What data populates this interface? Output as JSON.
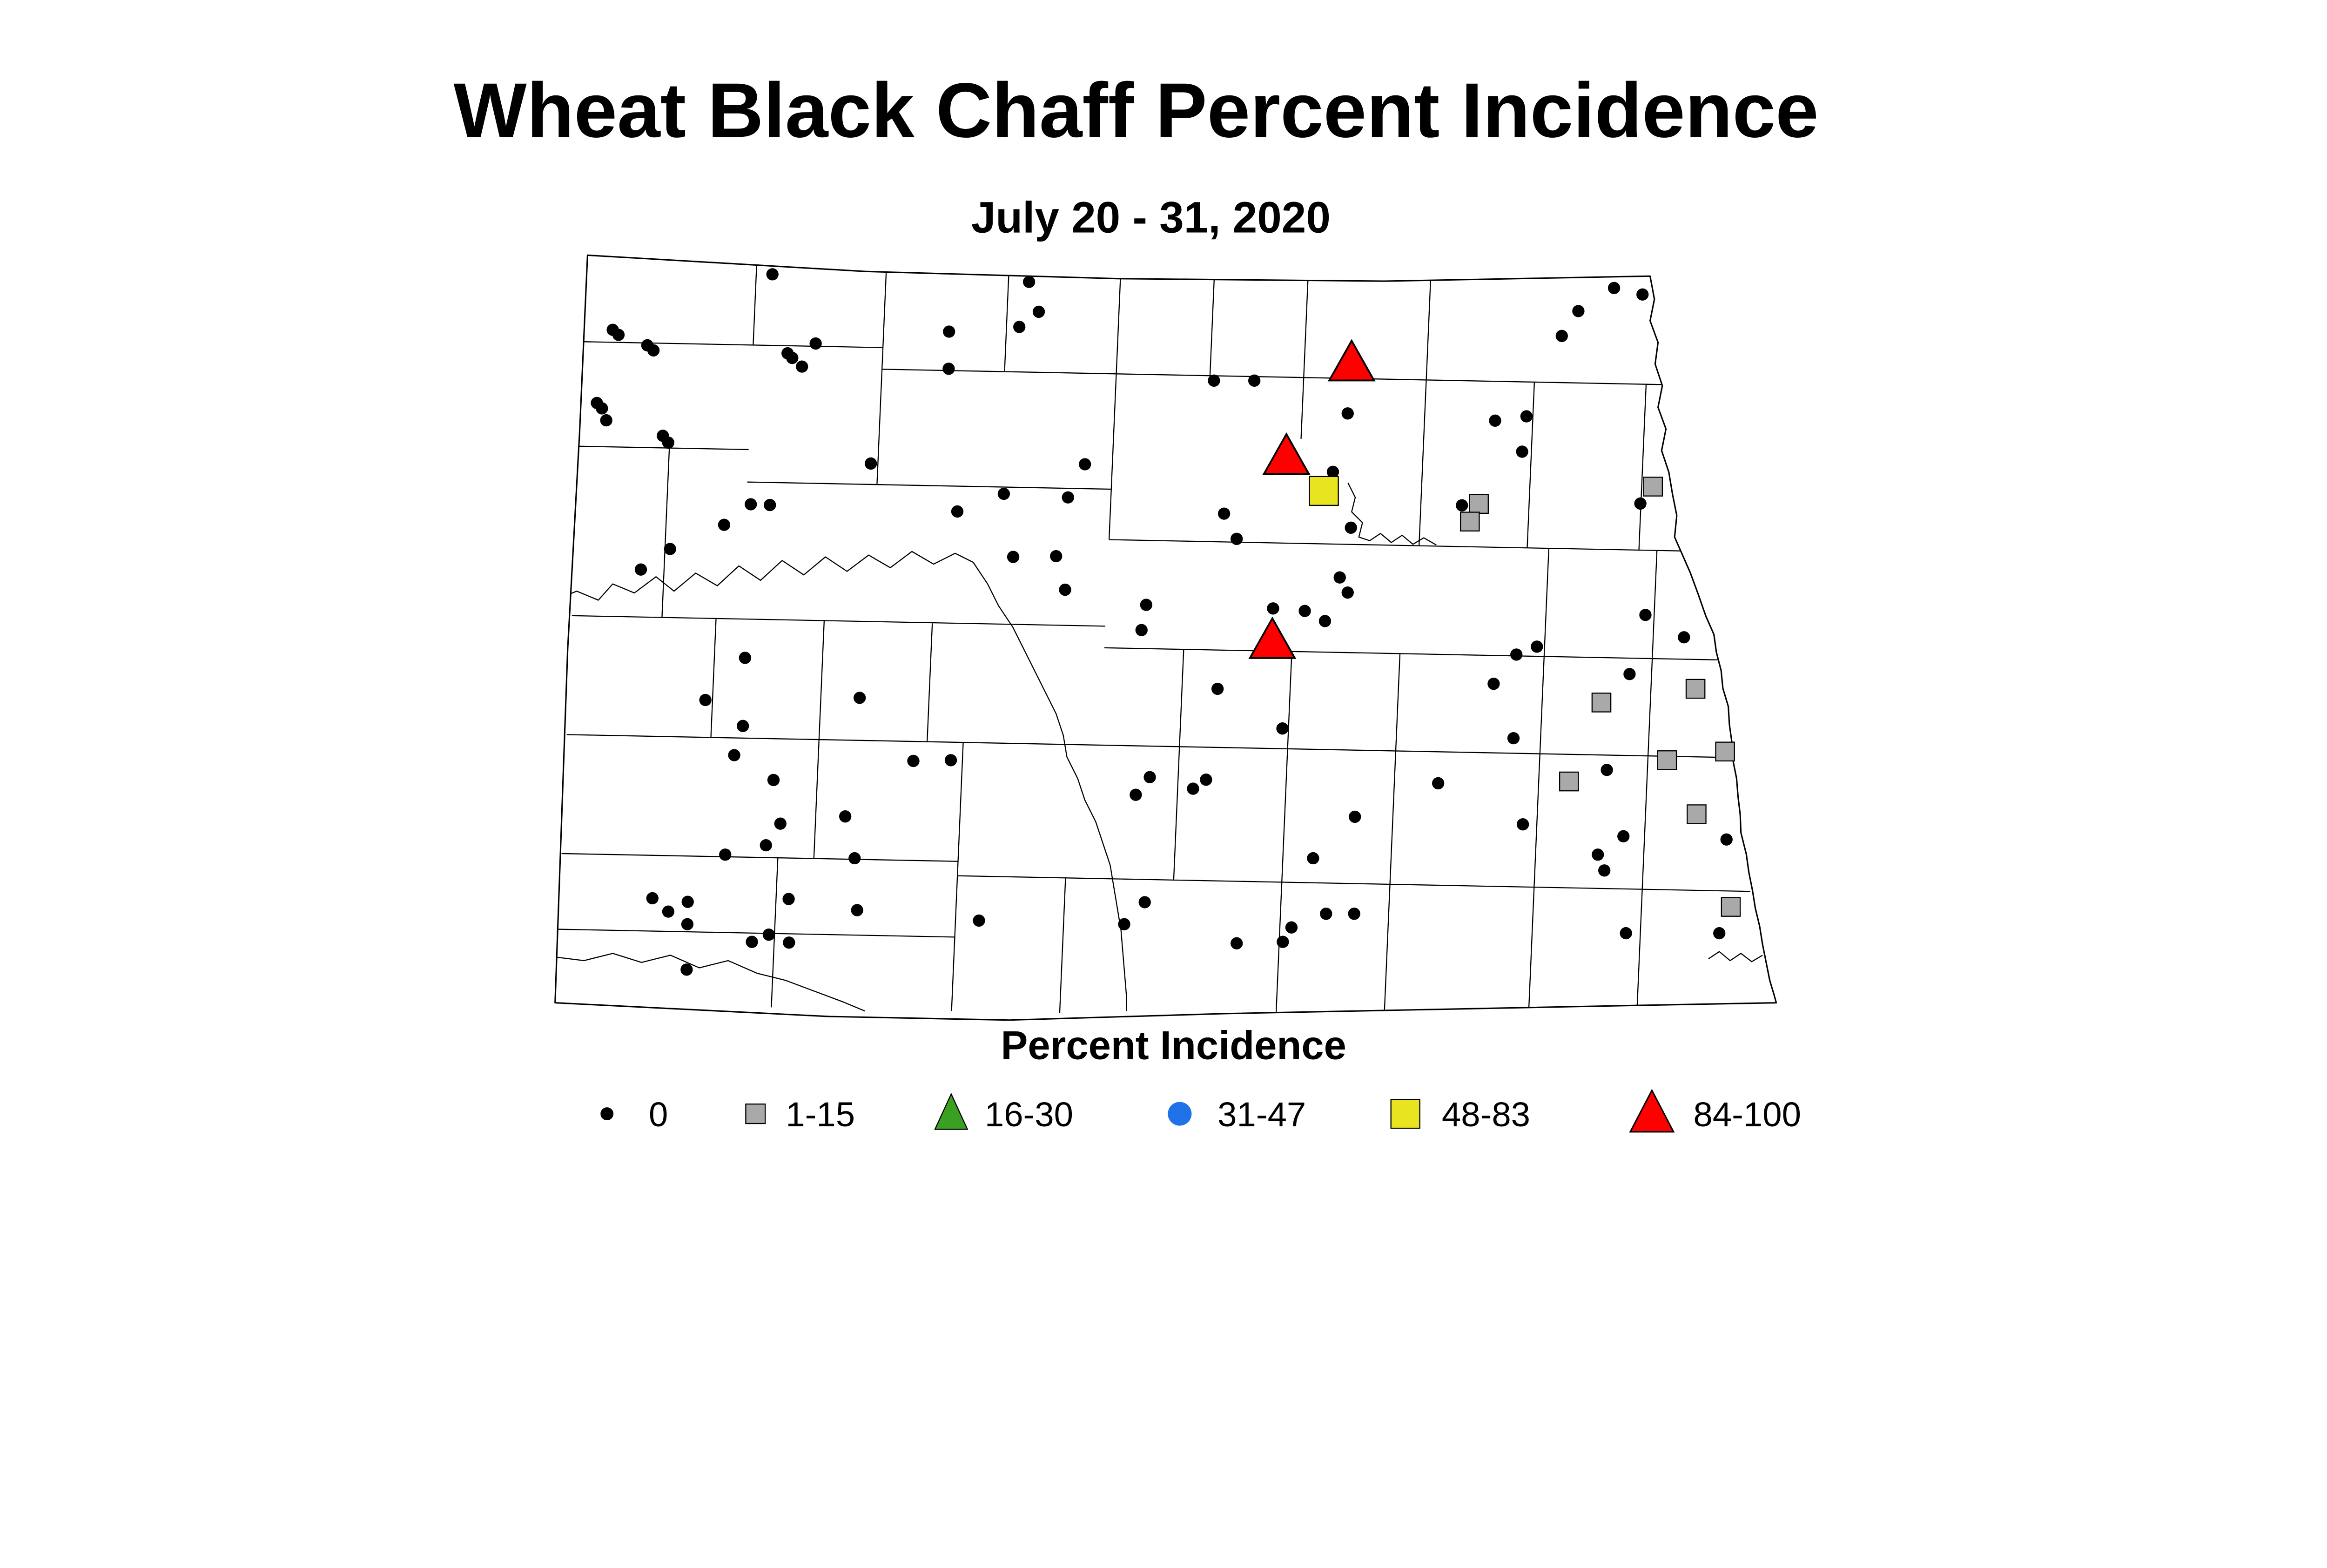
{
  "title": "Wheat Black Chaff Percent Incidence",
  "subtitle": "July 20 - 31, 2020",
  "legend": {
    "title": "Percent Incidence",
    "items": [
      {
        "label": "0",
        "shape": "dot",
        "color": "#000000"
      },
      {
        "label": "1-15",
        "shape": "square",
        "color": "#A9A9A9"
      },
      {
        "label": "16-30",
        "shape": "triangle",
        "color": "#3AA021"
      },
      {
        "label": "31-47",
        "shape": "circle",
        "color": "#2171E8"
      },
      {
        "label": "48-83",
        "shape": "square",
        "color": "#E8E41F"
      },
      {
        "label": "84-100",
        "shape": "triangle",
        "color": "#FF0000"
      }
    ]
  },
  "chart_data": {
    "type": "scatter",
    "map_region": "North Dakota counties",
    "title": "Wheat Black Chaff Percent Incidence",
    "subtitle": "July 20 - 31, 2020",
    "legend_title": "Percent Incidence",
    "classes": [
      {
        "key": "pct_0",
        "label": "0",
        "shape": "dot",
        "color": "#000000",
        "size": 17
      },
      {
        "key": "pct_1_15",
        "label": "1-15",
        "shape": "square",
        "color": "#A9A9A9",
        "size": 52
      },
      {
        "key": "pct_16_30",
        "label": "16-30",
        "shape": "triangle",
        "color": "#3AA021",
        "size": 100
      },
      {
        "key": "pct_31_47",
        "label": "31-47",
        "shape": "circle",
        "color": "#2171E8",
        "size": 33
      },
      {
        "key": "pct_48_83",
        "label": "48-83",
        "shape": "square",
        "color": "#E8E41F",
        "size": 80
      },
      {
        "key": "pct_84_100",
        "label": "84-100",
        "shape": "triangle",
        "color": "#FF0000",
        "size": 110
      }
    ],
    "points": {
      "pct_0": [
        [
          2143,
          761
        ],
        [
          1700,
          915
        ],
        [
          1716,
          929
        ],
        [
          1796,
          958
        ],
        [
          1813,
          972
        ],
        [
          2263,
          953
        ],
        [
          2185,
          980
        ],
        [
          2198,
          993
        ],
        [
          2225,
          1017
        ],
        [
          2633,
          920
        ],
        [
          2632,
          1023
        ],
        [
          1656,
          1118
        ],
        [
          1670,
          1133
        ],
        [
          1682,
          1166
        ],
        [
          1839,
          1209
        ],
        [
          1854,
          1228
        ],
        [
          2416,
          1286
        ],
        [
          2083,
          1399
        ],
        [
          2136,
          1401
        ],
        [
          2009,
          1456
        ],
        [
          1859,
          1523
        ],
        [
          1778,
          1580
        ],
        [
          2656,
          1419
        ],
        [
          2855,
          782
        ],
        [
          2882,
          865
        ],
        [
          2828,
          907
        ],
        [
          3368,
          1056
        ],
        [
          3480,
          1056
        ],
        [
          3739,
          1147
        ],
        [
          3698,
          1309
        ],
        [
          3010,
          1288
        ],
        [
          2785,
          1370
        ],
        [
          2963,
          1380
        ],
        [
          3396,
          1425
        ],
        [
          3431,
          1495
        ],
        [
          3748,
          1464
        ],
        [
          2811,
          1545
        ],
        [
          2930,
          1543
        ],
        [
          2955,
          1636
        ],
        [
          3180,
          1678
        ],
        [
          3167,
          1748
        ],
        [
          3532,
          1688
        ],
        [
          3620,
          1695
        ],
        [
          3676,
          1723
        ],
        [
          3717,
          1602
        ],
        [
          3739,
          1644
        ],
        [
          4478,
          799
        ],
        [
          4557,
          817
        ],
        [
          4379,
          863
        ],
        [
          4333,
          932
        ],
        [
          4148,
          1167
        ],
        [
          4235,
          1155
        ],
        [
          4223,
          1253
        ],
        [
          4551,
          1397
        ],
        [
          4056,
          1402
        ],
        [
          4565,
          1706
        ],
        [
          4672,
          1768
        ],
        [
          2067,
          1825
        ],
        [
          1957,
          1942
        ],
        [
          2385,
          1936
        ],
        [
          2061,
          2014
        ],
        [
          2037,
          2095
        ],
        [
          2146,
          2164
        ],
        [
          2165,
          2285
        ],
        [
          2345,
          2265
        ],
        [
          2125,
          2345
        ],
        [
          2012,
          2371
        ],
        [
          2371,
          2381
        ],
        [
          2534,
          2111
        ],
        [
          2638,
          2109
        ],
        [
          1810,
          2492
        ],
        [
          1908,
          2502
        ],
        [
          1854,
          2529
        ],
        [
          1907,
          2564
        ],
        [
          2188,
          2494
        ],
        [
          2378,
          2525
        ],
        [
          2086,
          2613
        ],
        [
          2133,
          2593
        ],
        [
          2189,
          2615
        ],
        [
          1905,
          2690
        ],
        [
          3378,
          1911
        ],
        [
          3558,
          2021
        ],
        [
          3190,
          2156
        ],
        [
          3151,
          2205
        ],
        [
          3310,
          2188
        ],
        [
          3346,
          2163
        ],
        [
          3759,
          2266
        ],
        [
          3643,
          2381
        ],
        [
          2716,
          2554
        ],
        [
          3176,
          2503
        ],
        [
          3119,
          2564
        ],
        [
          3679,
          2535
        ],
        [
          3757,
          2535
        ],
        [
          3583,
          2573
        ],
        [
          3559,
          2613
        ],
        [
          3431,
          2617
        ],
        [
          4264,
          1794
        ],
        [
          4207,
          1816
        ],
        [
          4144,
          1897
        ],
        [
          4521,
          1870
        ],
        [
          4199,
          2048
        ],
        [
          4458,
          2136
        ],
        [
          3990,
          2173
        ],
        [
          4225,
          2287
        ],
        [
          4504,
          2320
        ],
        [
          4790,
          2329
        ],
        [
          4433,
          2371
        ],
        [
          4451,
          2415
        ],
        [
          4511,
          2589
        ],
        [
          4770,
          2589
        ]
      ],
      "pct_1_15": [
        [
          4586,
          1350
        ],
        [
          4103,
          1398
        ],
        [
          4078,
          1447
        ],
        [
          4704,
          1911
        ],
        [
          4443,
          1949
        ],
        [
          4786,
          2085
        ],
        [
          4625,
          2109
        ],
        [
          4353,
          2168
        ],
        [
          4707,
          2259
        ],
        [
          4802,
          2516
        ]
      ],
      "pct_16_30": [],
      "pct_31_47": [],
      "pct_48_83": [
        [
          3673,
          1362
        ]
      ],
      "pct_84_100": [
        [
          3750,
          1006
        ],
        [
          3569,
          1265
        ],
        [
          3530,
          1776
        ]
      ]
    }
  }
}
